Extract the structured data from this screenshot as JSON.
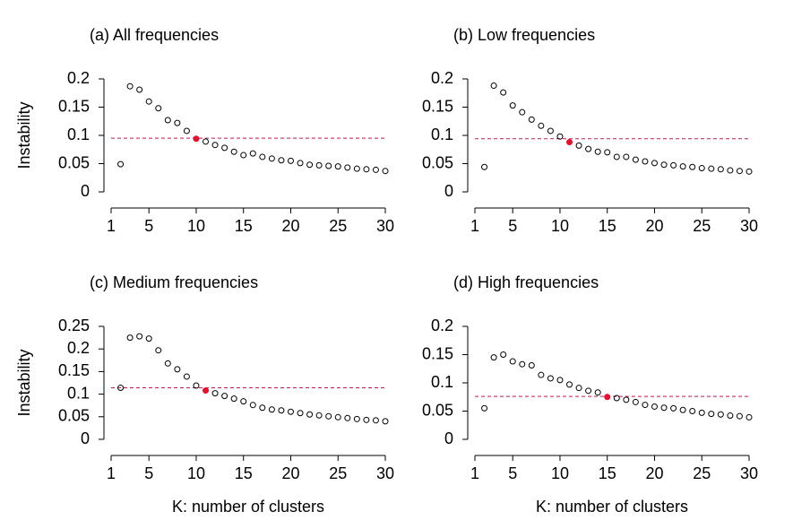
{
  "chart_data": [
    {
      "type": "scatter",
      "title": "(a) All frequencies",
      "ylabel": "Instability",
      "x": [
        2,
        3,
        4,
        5,
        6,
        7,
        8,
        9,
        10,
        11,
        12,
        13,
        14,
        15,
        16,
        17,
        18,
        19,
        20,
        21,
        22,
        23,
        24,
        25,
        26,
        27,
        28,
        29,
        30
      ],
      "values": [
        0.049,
        0.187,
        0.181,
        0.16,
        0.148,
        0.127,
        0.122,
        0.108,
        0.094,
        0.089,
        0.083,
        0.078,
        0.071,
        0.065,
        0.068,
        0.062,
        0.059,
        0.056,
        0.055,
        0.051,
        0.048,
        0.047,
        0.046,
        0.045,
        0.043,
        0.041,
        0.04,
        0.039,
        0.037
      ],
      "highlight_x": 10,
      "highlight_color": "#e8112d",
      "point_color": "#000000",
      "threshold": 0.095,
      "threshold_color": "#c2185b",
      "xlim": [
        1,
        30
      ],
      "xticks": [
        1,
        5,
        10,
        15,
        20,
        25,
        30
      ],
      "ylim": [
        0,
        0.2
      ],
      "yticks": [
        0,
        0.05,
        0.1,
        0.15,
        0.2
      ]
    },
    {
      "type": "scatter",
      "title": "(b) Low frequencies",
      "x": [
        2,
        3,
        4,
        5,
        6,
        7,
        8,
        9,
        10,
        11,
        12,
        13,
        14,
        15,
        16,
        17,
        18,
        19,
        20,
        21,
        22,
        23,
        24,
        25,
        26,
        27,
        28,
        29,
        30
      ],
      "values": [
        0.044,
        0.188,
        0.176,
        0.153,
        0.141,
        0.128,
        0.117,
        0.108,
        0.098,
        0.088,
        0.082,
        0.076,
        0.071,
        0.07,
        0.062,
        0.062,
        0.057,
        0.054,
        0.051,
        0.048,
        0.047,
        0.045,
        0.044,
        0.042,
        0.041,
        0.04,
        0.038,
        0.037,
        0.036
      ],
      "highlight_x": 11,
      "highlight_color": "#e8112d",
      "point_color": "#000000",
      "threshold": 0.094,
      "threshold_color": "#c2185b",
      "xlim": [
        1,
        30
      ],
      "xticks": [
        1,
        5,
        10,
        15,
        20,
        25,
        30
      ],
      "ylim": [
        0,
        0.2
      ],
      "yticks": [
        0,
        0.05,
        0.1,
        0.15,
        0.2
      ]
    },
    {
      "type": "scatter",
      "title": "(c) Medium frequencies",
      "ylabel": "Instability",
      "xlabel": "K: number of clusters",
      "x": [
        2,
        3,
        4,
        5,
        6,
        7,
        8,
        9,
        10,
        11,
        12,
        13,
        14,
        15,
        16,
        17,
        18,
        19,
        20,
        21,
        22,
        23,
        24,
        25,
        26,
        27,
        28,
        29,
        30
      ],
      "values": [
        0.114,
        0.225,
        0.228,
        0.223,
        0.197,
        0.168,
        0.155,
        0.139,
        0.119,
        0.108,
        0.102,
        0.096,
        0.09,
        0.084,
        0.076,
        0.07,
        0.066,
        0.064,
        0.061,
        0.058,
        0.055,
        0.053,
        0.051,
        0.049,
        0.047,
        0.045,
        0.043,
        0.042,
        0.04
      ],
      "highlight_x": 11,
      "highlight_color": "#e8112d",
      "point_color": "#000000",
      "threshold": 0.114,
      "threshold_color": "#c2185b",
      "xlim": [
        1,
        30
      ],
      "xticks": [
        1,
        5,
        10,
        15,
        20,
        25,
        30
      ],
      "ylim": [
        0,
        0.25
      ],
      "yticks": [
        0,
        0.05,
        0.1,
        0.15,
        0.2,
        0.25
      ]
    },
    {
      "type": "scatter",
      "title": "(d) High frequencies",
      "xlabel": "K: number of clusters",
      "x": [
        2,
        3,
        4,
        5,
        6,
        7,
        8,
        9,
        10,
        11,
        12,
        13,
        14,
        15,
        16,
        17,
        18,
        19,
        20,
        21,
        22,
        23,
        24,
        25,
        26,
        27,
        28,
        29,
        30
      ],
      "values": [
        0.055,
        0.145,
        0.15,
        0.138,
        0.133,
        0.131,
        0.114,
        0.108,
        0.105,
        0.097,
        0.091,
        0.086,
        0.083,
        0.075,
        0.073,
        0.07,
        0.066,
        0.061,
        0.058,
        0.056,
        0.055,
        0.052,
        0.05,
        0.047,
        0.045,
        0.044,
        0.042,
        0.041,
        0.039
      ],
      "highlight_x": 15,
      "highlight_color": "#e8112d",
      "point_color": "#000000",
      "threshold": 0.076,
      "threshold_color": "#c2185b",
      "xlim": [
        1,
        30
      ],
      "xticks": [
        1,
        5,
        10,
        15,
        20,
        25,
        30
      ],
      "ylim": [
        0,
        0.2
      ],
      "yticks": [
        0,
        0.05,
        0.1,
        0.15,
        0.2
      ]
    }
  ]
}
